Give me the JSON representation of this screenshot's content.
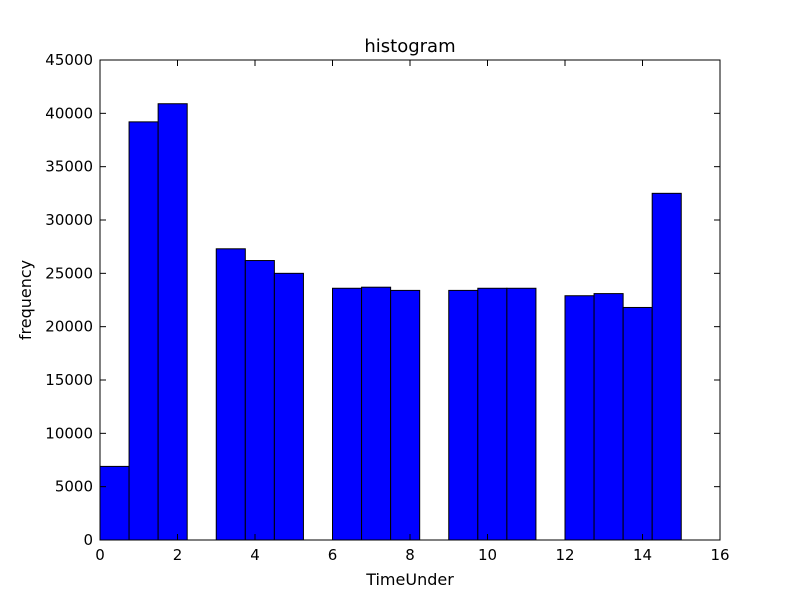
{
  "chart_data": {
    "type": "bar",
    "title": "histogram",
    "xlabel": "TimeUnder",
    "ylabel": "frequency",
    "xlim": [
      0,
      16
    ],
    "ylim": [
      0,
      45000
    ],
    "xticks": [
      0,
      2,
      4,
      6,
      8,
      10,
      12,
      14,
      16
    ],
    "yticks": [
      0,
      5000,
      10000,
      15000,
      20000,
      25000,
      30000,
      35000,
      40000,
      45000
    ],
    "grid": false,
    "bar_color": "#0000ff",
    "bins": [
      {
        "x0": 0.0,
        "x1": 0.75,
        "value": 6900
      },
      {
        "x0": 0.75,
        "x1": 1.5,
        "value": 39200
      },
      {
        "x0": 1.5,
        "x1": 2.25,
        "value": 40900
      },
      {
        "x0": 2.25,
        "x1": 3.0,
        "value": 0
      },
      {
        "x0": 3.0,
        "x1": 3.75,
        "value": 27300
      },
      {
        "x0": 3.75,
        "x1": 4.5,
        "value": 26200
      },
      {
        "x0": 4.5,
        "x1": 5.25,
        "value": 25000
      },
      {
        "x0": 5.25,
        "x1": 6.0,
        "value": 0
      },
      {
        "x0": 6.0,
        "x1": 6.75,
        "value": 23600
      },
      {
        "x0": 6.75,
        "x1": 7.5,
        "value": 23700
      },
      {
        "x0": 7.5,
        "x1": 8.25,
        "value": 23400
      },
      {
        "x0": 8.25,
        "x1": 9.0,
        "value": 0
      },
      {
        "x0": 9.0,
        "x1": 9.75,
        "value": 23400
      },
      {
        "x0": 9.75,
        "x1": 10.5,
        "value": 23600
      },
      {
        "x0": 10.5,
        "x1": 11.25,
        "value": 23600
      },
      {
        "x0": 11.25,
        "x1": 12.0,
        "value": 0
      },
      {
        "x0": 12.0,
        "x1": 12.75,
        "value": 22900
      },
      {
        "x0": 12.75,
        "x1": 13.5,
        "value": 23100
      },
      {
        "x0": 13.5,
        "x1": 14.25,
        "value": 21800
      },
      {
        "x0": 14.25,
        "x1": 15.0,
        "value": 32500
      }
    ]
  }
}
